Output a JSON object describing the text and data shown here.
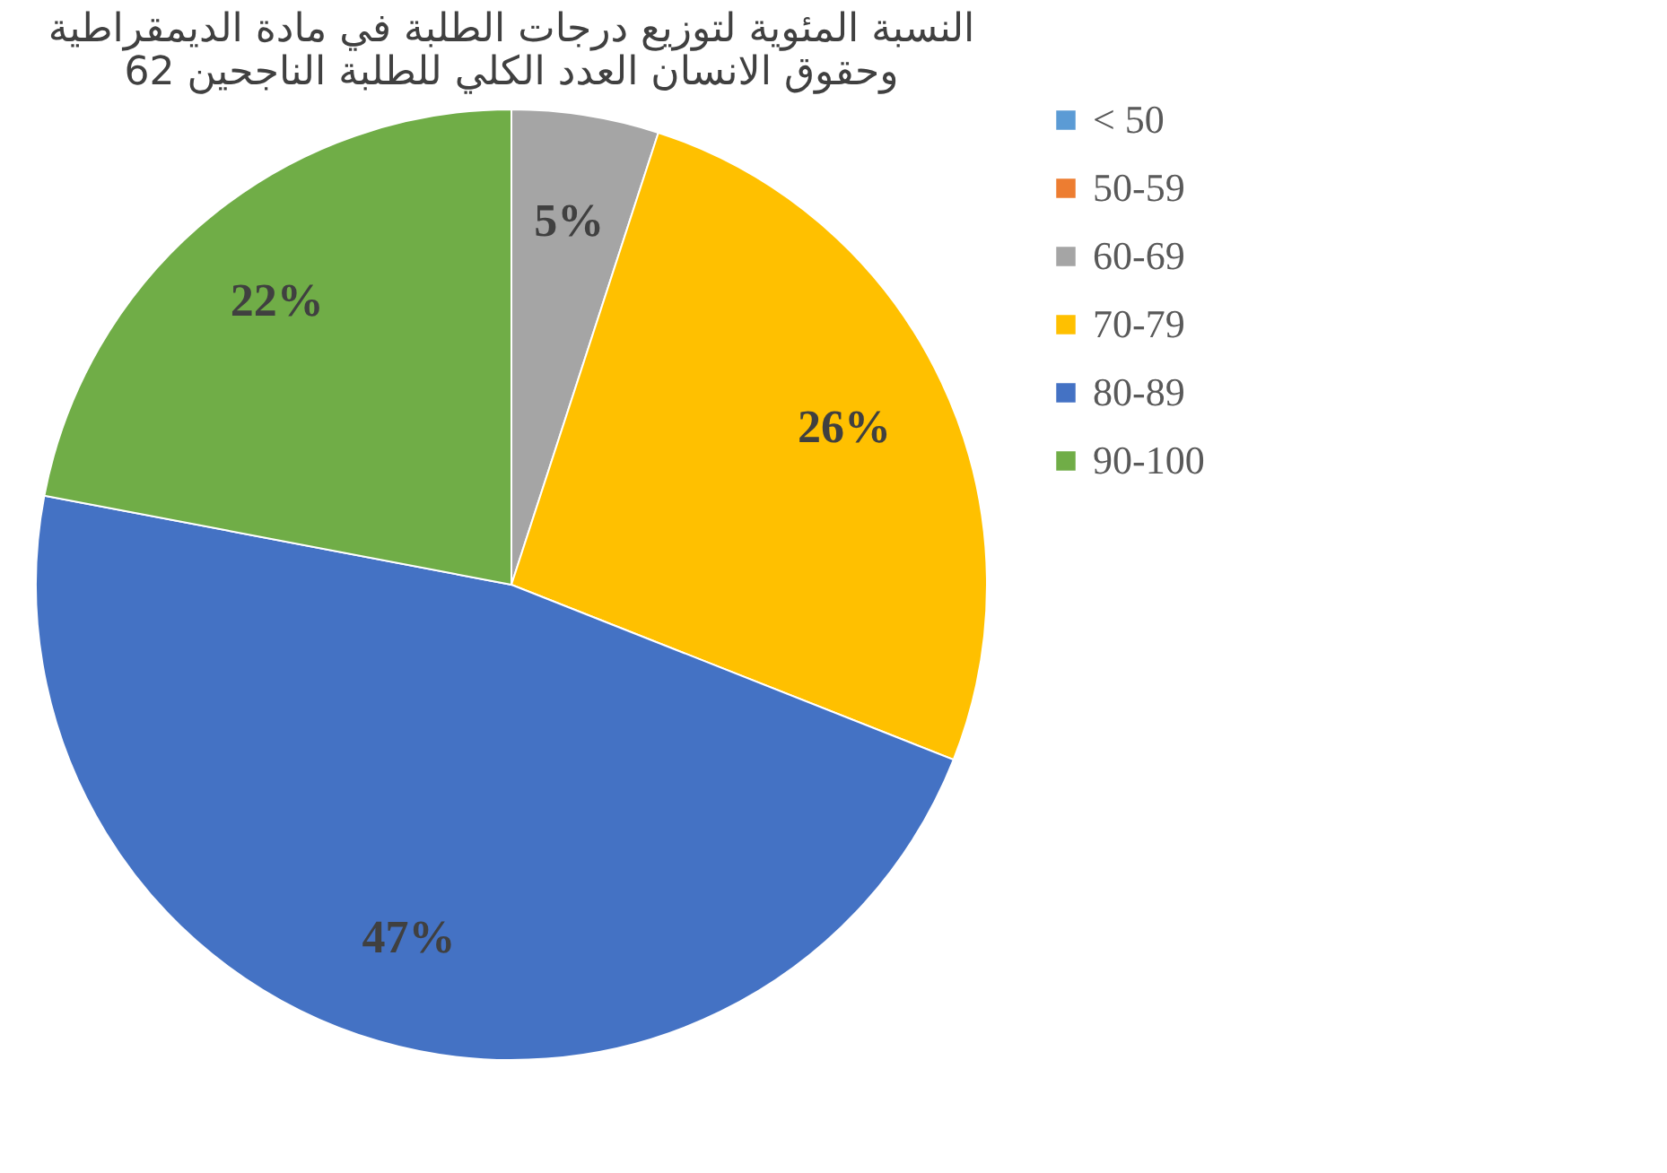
{
  "chart_data": {
    "type": "pie",
    "title": "النسبة المئوية لتوزيع درجات الطلبة في مادة الديمقراطية\nوحقوق الانسان العدد الكلي للطلبة الناجحين 62",
    "categories": [
      "< 50",
      "50-59",
      "60-69",
      "70-79",
      "80-89",
      "90-100"
    ],
    "values": [
      0,
      0,
      5,
      26,
      47,
      22
    ],
    "colors": [
      "#5b9bd5",
      "#ed7d31",
      "#a5a5a5",
      "#ffc000",
      "#4472c4",
      "#70ad47"
    ],
    "value_labels": [
      null,
      null,
      "5%",
      "26%",
      "47%",
      "22%"
    ],
    "legend": "right"
  }
}
